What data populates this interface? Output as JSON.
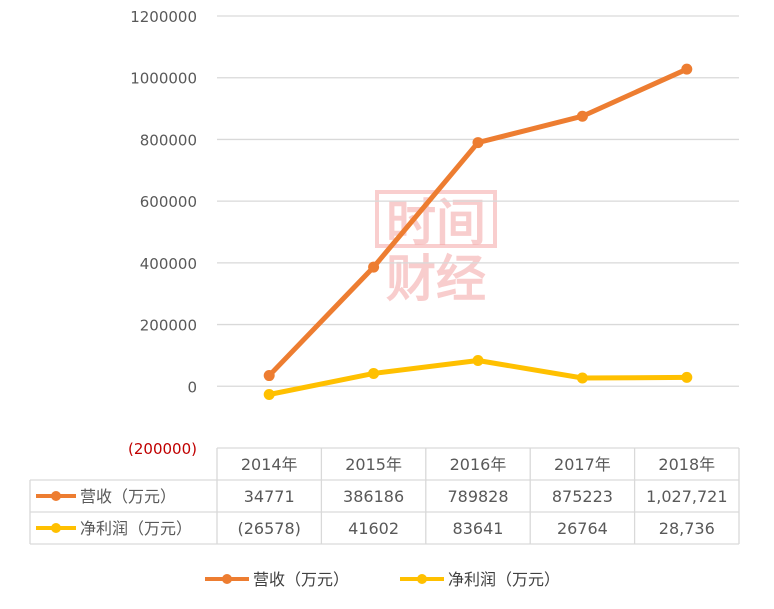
{
  "chart_data": {
    "type": "line",
    "categories": [
      "2014年",
      "2015年",
      "2016年",
      "2017年",
      "2018年"
    ],
    "series": [
      {
        "name": "营收（万元）",
        "values": [
          34771,
          386186,
          789828,
          875223,
          1027721
        ],
        "table_values": [
          "34771",
          "386186",
          "789828",
          "875223",
          "1,027,721"
        ],
        "color": "#ed7d31"
      },
      {
        "name": "净利润（万元）",
        "values": [
          -26578,
          41602,
          83641,
          26764,
          28736
        ],
        "table_values": [
          "(26578)",
          "41602",
          "83641",
          "26764",
          "28,736"
        ],
        "color": "#ffc000"
      }
    ],
    "ylim": [
      -200000,
      1200000
    ],
    "yticks": [
      {
        "value": 1200000,
        "label": "1200000"
      },
      {
        "value": 1000000,
        "label": "1000000"
      },
      {
        "value": 800000,
        "label": "800000"
      },
      {
        "value": 600000,
        "label": "600000"
      },
      {
        "value": 400000,
        "label": "400000"
      },
      {
        "value": 200000,
        "label": "200000"
      },
      {
        "value": 0,
        "label": "0"
      },
      {
        "value": -200000,
        "label": "(200000)"
      }
    ],
    "negative_tick_color": "#c00000",
    "grid": true,
    "data_table": true,
    "legend_position": "bottom"
  },
  "watermark": {
    "line1": "时间",
    "line2": "财经"
  }
}
